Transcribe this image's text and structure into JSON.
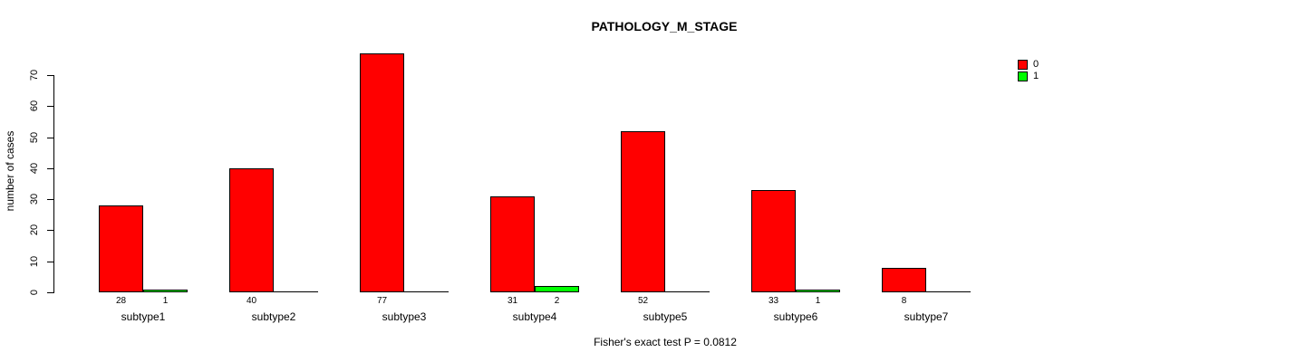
{
  "chart_data": {
    "type": "bar",
    "title": "PATHOLOGY_M_STAGE",
    "ylabel": "number of cases",
    "xlabel": "",
    "annotation": "Fisher's exact test P = 0.0812",
    "categories": [
      "subtype1",
      "subtype2",
      "subtype3",
      "subtype4",
      "subtype5",
      "subtype6",
      "subtype7"
    ],
    "series": [
      {
        "name": "0",
        "color": "#FF0000",
        "values": [
          28,
          40,
          77,
          31,
          52,
          33,
          8
        ],
        "value_labels": [
          "28",
          "40",
          "77",
          "31",
          "52",
          "33",
          "8"
        ]
      },
      {
        "name": "1",
        "color": "#00FF00",
        "values": [
          1,
          0,
          0,
          2,
          0,
          1,
          0
        ],
        "value_labels": [
          "1",
          "",
          "",
          "2",
          "",
          "1",
          ""
        ]
      }
    ],
    "ylim": [
      0,
      70
    ],
    "yticks": [
      0,
      10,
      20,
      30,
      40,
      50,
      60,
      70
    ],
    "grid": false,
    "legend_position": "top-right",
    "bar_border_color": "#000000",
    "axis_color": "#000000",
    "background_color": "#FFFFFF"
  }
}
